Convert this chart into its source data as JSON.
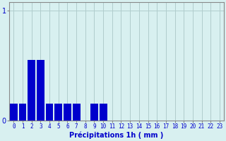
{
  "hours": [
    0,
    1,
    2,
    3,
    4,
    5,
    6,
    7,
    8,
    9,
    10,
    11,
    12,
    13,
    14,
    15,
    16,
    17,
    18,
    19,
    20,
    21,
    22,
    23
  ],
  "values": [
    0.15,
    0.15,
    0.55,
    0.55,
    0.15,
    0.15,
    0.15,
    0.15,
    0.0,
    0.15,
    0.15,
    0.0,
    0.0,
    0.0,
    0.0,
    0.0,
    0.0,
    0.0,
    0.0,
    0.0,
    0.0,
    0.0,
    0.0,
    0.0
  ],
  "bar_color": "#0000cc",
  "background_color": "#d8f0f0",
  "grid_color": "#b0cccc",
  "axis_color": "#888888",
  "xlabel": "Précipitations 1h ( mm )",
  "xlabel_color": "#0000cc",
  "tick_color": "#0000cc",
  "ytick_labels": [
    "0",
    "1"
  ],
  "ytick_values": [
    0,
    1
  ],
  "ylim": [
    0,
    1.08
  ],
  "xlim": [
    -0.5,
    23.5
  ]
}
